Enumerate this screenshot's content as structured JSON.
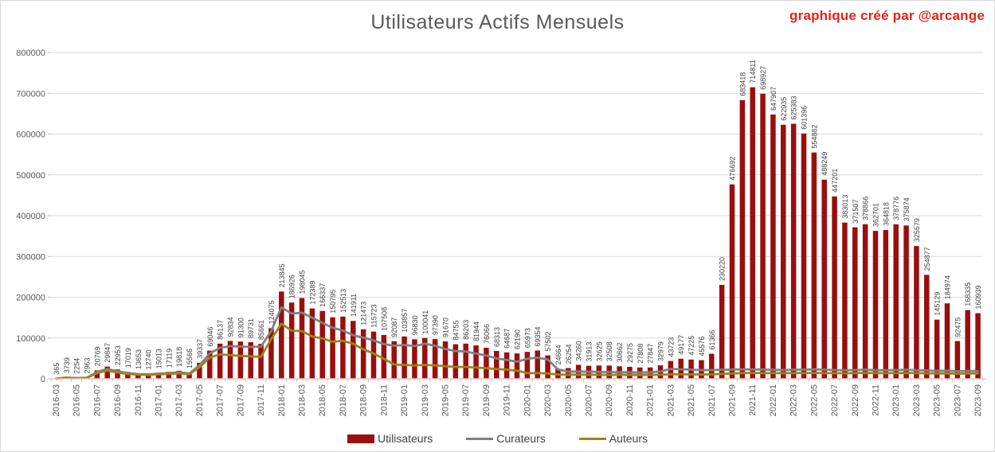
{
  "header": {
    "title": "Utilisateurs Actifs Mensuels",
    "title_color": "#595959",
    "watermark": "graphique créé par @arcange",
    "watermark_color": "#e2231a"
  },
  "chart_data": {
    "type": "bar",
    "title": "Utilisateurs Actifs Mensuels",
    "xlabel": "",
    "ylabel": "",
    "ylim": [
      0,
      800000
    ],
    "y_tick_step": 100000,
    "y_tick_labels": [
      "0",
      "100000",
      "200000",
      "300000",
      "400000",
      "500000",
      "600000",
      "700000",
      "800000"
    ],
    "x_tick_every": 2,
    "grid": true,
    "bar_value_labels_visible": true,
    "legend_position": "bottom",
    "colors": {
      "grid": "#d9d9d9",
      "axis_baseline": "#efc4c4",
      "tick": "#bfbfbf",
      "axis_text": "#595959",
      "value_label_text": "#404040"
    },
    "categories": [
      "2016-03",
      "2016-04",
      "2016-05",
      "2016-06",
      "2016-07",
      "2016-08",
      "2016-09",
      "2016-10",
      "2016-11",
      "2016-12",
      "2017-01",
      "2017-02",
      "2017-03",
      "2017-04",
      "2017-05",
      "2017-06",
      "2017-07",
      "2017-08",
      "2017-09",
      "2017-10",
      "2017-11",
      "2017-12",
      "2018-01",
      "2018-02",
      "2018-03",
      "2018-04",
      "2018-05",
      "2018-06",
      "2018-07",
      "2018-08",
      "2018-09",
      "2018-10",
      "2018-11",
      "2018-12",
      "2019-01",
      "2019-02",
      "2019-03",
      "2019-04",
      "2019-05",
      "2019-06",
      "2019-07",
      "2019-08",
      "2019-09",
      "2019-10",
      "2019-11",
      "2019-12",
      "2020-01",
      "2020-02",
      "2020-03",
      "2020-04",
      "2020-05",
      "2020-06",
      "2020-07",
      "2020-08",
      "2020-09",
      "2020-10",
      "2020-11",
      "2020-12",
      "2021-01",
      "2021-02",
      "2021-03",
      "2021-04",
      "2021-05",
      "2021-06",
      "2021-07",
      "2021-08",
      "2021-09",
      "2021-10",
      "2021-11",
      "2021-12",
      "2022-01",
      "2022-02",
      "2022-03",
      "2022-04",
      "2022-05",
      "2022-06",
      "2022-07",
      "2022-08",
      "2022-09",
      "2022-10",
      "2022-11",
      "2022-12",
      "2023-01",
      "2023-02",
      "2023-03",
      "2023-04",
      "2023-05",
      "2023-06",
      "2023-07",
      "2023-08",
      "2023-09"
    ],
    "series": [
      {
        "name": "Utilisateurs",
        "type": "bar",
        "color": "#9a0e0e",
        "values": [
          365,
          3739,
          2254,
          2963,
          20769,
          29847,
          22953,
          17019,
          13653,
          12740,
          15013,
          17119,
          19818,
          15566,
          39337,
          69046,
          86137,
          92834,
          91300,
          89731,
          85661,
          124075,
          213845,
          186926,
          198045,
          172389,
          166337,
          150795,
          152513,
          141911,
          121473,
          115723,
          107508,
          92087,
          103857,
          96830,
          100041,
          97390,
          91670,
          84755,
          86203,
          81944,
          76066,
          68313,
          64687,
          62190,
          65973,
          69354,
          57502,
          24664,
          26254,
          34260,
          31913,
          32625,
          32508,
          30662,
          29275,
          27808,
          27847,
          32979,
          43723,
          49177,
          47225,
          45576,
          61366,
          230220,
          476692,
          683418,
          714811,
          698927,
          647907,
          622935,
          625383,
          601396,
          554882,
          488249,
          447201,
          383013,
          371507,
          378866,
          362701,
          364818,
          378776,
          375874,
          325579,
          254877,
          145129,
          184974,
          92475,
          168335,
          160939
        ]
      },
      {
        "name": "Curateurs",
        "type": "line",
        "color": "#808080",
        "values": [
          300,
          3000,
          2000,
          2600,
          17000,
          24000,
          18500,
          14000,
          11500,
          11000,
          12500,
          14000,
          16000,
          13000,
          33000,
          62000,
          76000,
          80000,
          79000,
          78000,
          79000,
          117000,
          175000,
          160000,
          162000,
          150000,
          137000,
          125000,
          118000,
          107000,
          101000,
          94000,
          85000,
          81000,
          83000,
          80000,
          86000,
          81000,
          73000,
          68000,
          67000,
          62000,
          57000,
          50000,
          46000,
          42000,
          49000,
          52000,
          47000,
          23000,
          17500,
          18000,
          17500,
          17000,
          16500,
          16000,
          16000,
          15500,
          16000,
          18000,
          24000,
          23500,
          22500,
          21500,
          21500,
          22000,
          22500,
          23000,
          23000,
          22500,
          22000,
          21500,
          22000,
          22500,
          23000,
          22500,
          21500,
          21000,
          21500,
          22000,
          21000,
          21000,
          21500,
          22000,
          21000,
          20500,
          19500,
          20000,
          18500,
          19500,
          19000
        ]
      },
      {
        "name": "Auteurs",
        "type": "line",
        "color": "#9d8319",
        "values": [
          250,
          2500,
          1700,
          2200,
          14000,
          20000,
          15500,
          12000,
          10000,
          9500,
          11000,
          12000,
          13500,
          11000,
          28000,
          52000,
          60000,
          58000,
          56000,
          55000,
          54000,
          97000,
          135000,
          118000,
          117000,
          104000,
          99000,
          91000,
          93000,
          86000,
          72000,
          62000,
          49000,
          35000,
          34000,
          33000,
          34000,
          33000,
          31000,
          29000,
          29000,
          27500,
          26000,
          24000,
          22500,
          20000,
          14000,
          14000,
          13000,
          10500,
          10000,
          10200,
          10000,
          9800,
          9600,
          9500,
          9400,
          9300,
          9500,
          10000,
          11000,
          11000,
          10800,
          10500,
          11000,
          12000,
          13000,
          14000,
          14500,
          14000,
          14000,
          13800,
          14000,
          14200,
          14500,
          14000,
          13800,
          13500,
          14000,
          14500,
          14000,
          13800,
          14000,
          14200,
          13800,
          13500,
          13000,
          13200,
          12500,
          13000,
          12800
        ]
      }
    ]
  },
  "legend": {
    "items": [
      {
        "label": "Utilisateurs"
      },
      {
        "label": "Curateurs"
      },
      {
        "label": "Auteurs"
      }
    ]
  }
}
